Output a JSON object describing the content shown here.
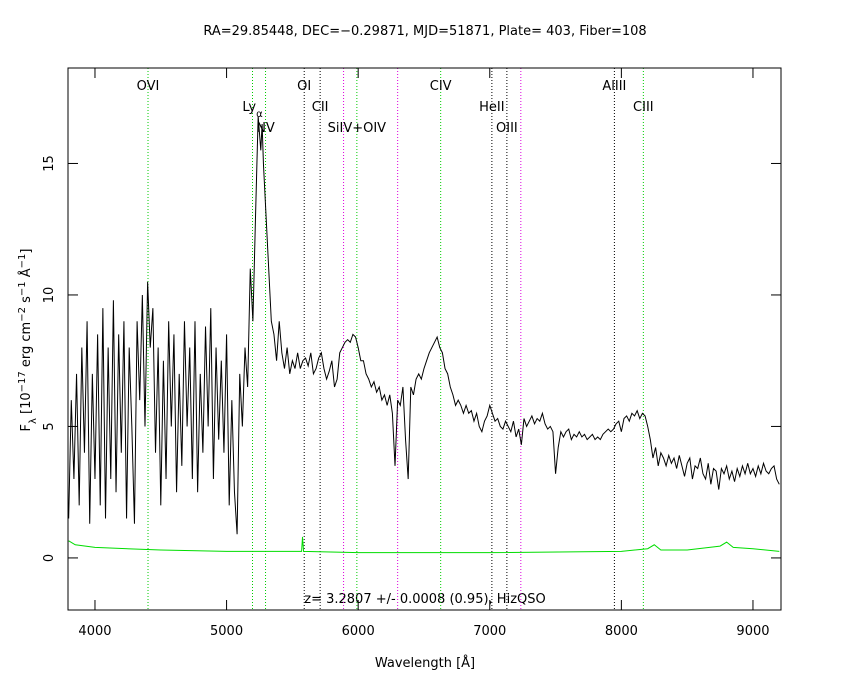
{
  "chart_data": {
    "type": "line",
    "title": "RA=29.85448, DEC=−0.29871, MJD=51871, Plate= 403, Fiber=108",
    "xlabel": "Wavelength [Å]",
    "ylabel_parts": [
      {
        "text": "F"
      },
      {
        "text": "λ",
        "shift": "sub"
      },
      {
        "text": " [10"
      },
      {
        "text": "−17",
        "shift": "super"
      },
      {
        "text": " erg cm"
      },
      {
        "text": "−2",
        "shift": "super"
      },
      {
        "text": " s"
      },
      {
        "text": "−1",
        "shift": "super"
      },
      {
        "text": " Å"
      },
      {
        "text": "−1",
        "shift": "super"
      },
      {
        "text": "]"
      }
    ],
    "annotation": "z= 3.2807 +/- 0.0008 (0.95), HizQSO",
    "xlim": [
      3795,
      9213
    ],
    "ylim": [
      -1.98,
      18.63
    ],
    "xticks": [
      4000,
      5000,
      6000,
      7000,
      8000,
      9000
    ],
    "yticks": [
      0,
      5,
      10,
      15
    ],
    "emission_lines": [
      {
        "x": 4403,
        "label": "OVI",
        "color": "#00cc00"
      },
      {
        "x": 5197,
        "label": "Ly",
        "label_sub": "α",
        "color": "#00cc00"
      },
      {
        "x": 5296,
        "label": "NV",
        "color": "#00cc00"
      },
      {
        "x": 5590,
        "label": "OI",
        "color": "#000000"
      },
      {
        "x": 5711,
        "label": "CII",
        "color": "#000000"
      },
      {
        "x": 5990,
        "label": "SiIV+OIV",
        "color": "#00cc00"
      },
      {
        "x": 6627,
        "label": "CIV",
        "color": "#00cc00"
      },
      {
        "x": 7016,
        "label": "HeII",
        "color": "#000000"
      },
      {
        "x": 7130,
        "label": "OIII",
        "color": "#000000"
      },
      {
        "x": 7947,
        "label": "AlIII",
        "color": "#000000"
      },
      {
        "x": 8167,
        "label": "CIII",
        "color": "#00cc00"
      }
    ],
    "sky_lines": {
      "color": "#dd00dd",
      "x": [
        5889,
        6300,
        7236
      ]
    },
    "series": [
      {
        "color": "#000000",
        "x": [
          3800,
          3820,
          3840,
          3860,
          3880,
          3900,
          3920,
          3940,
          3960,
          3980,
          4000,
          4020,
          4040,
          4060,
          4080,
          4100,
          4120,
          4140,
          4160,
          4180,
          4200,
          4220,
          4240,
          4260,
          4280,
          4300,
          4320,
          4340,
          4360,
          4380,
          4400,
          4420,
          4440,
          4460,
          4480,
          4500,
          4520,
          4540,
          4560,
          4580,
          4600,
          4620,
          4640,
          4660,
          4680,
          4700,
          4720,
          4740,
          4760,
          4780,
          4800,
          4820,
          4840,
          4860,
          4880,
          4900,
          4920,
          4940,
          4960,
          4980,
          5000,
          5020,
          5040,
          5060,
          5080,
          5100,
          5120,
          5140,
          5160,
          5180,
          5200,
          5220,
          5240,
          5260,
          5270,
          5280,
          5300,
          5320,
          5340,
          5360,
          5380,
          5400,
          5420,
          5440,
          5460,
          5480,
          5500,
          5520,
          5540,
          5560,
          5580,
          5600,
          5620,
          5640,
          5660,
          5680,
          5700,
          5720,
          5740,
          5760,
          5780,
          5800,
          5820,
          5840,
          5860,
          5880,
          5900,
          5920,
          5940,
          5960,
          5980,
          6000,
          6020,
          6040,
          6060,
          6080,
          6100,
          6120,
          6140,
          6160,
          6180,
          6200,
          6220,
          6240,
          6260,
          6280,
          6300,
          6320,
          6340,
          6360,
          6380,
          6400,
          6420,
          6440,
          6460,
          6480,
          6500,
          6520,
          6540,
          6560,
          6580,
          6600,
          6620,
          6640,
          6660,
          6680,
          6700,
          6720,
          6740,
          6760,
          6780,
          6800,
          6820,
          6840,
          6860,
          6880,
          6900,
          6920,
          6940,
          6960,
          6980,
          7000,
          7020,
          7040,
          7060,
          7080,
          7100,
          7120,
          7140,
          7160,
          7180,
          7200,
          7220,
          7240,
          7260,
          7280,
          7300,
          7320,
          7340,
          7360,
          7380,
          7400,
          7420,
          7440,
          7460,
          7480,
          7500,
          7520,
          7540,
          7560,
          7580,
          7600,
          7620,
          7640,
          7660,
          7680,
          7700,
          7720,
          7740,
          7760,
          7780,
          7800,
          7820,
          7840,
          7860,
          7880,
          7900,
          7920,
          7940,
          7960,
          7980,
          8000,
          8020,
          8040,
          8060,
          8080,
          8100,
          8120,
          8140,
          8160,
          8180,
          8200,
          8220,
          8240,
          8260,
          8280,
          8300,
          8320,
          8340,
          8360,
          8380,
          8400,
          8420,
          8440,
          8460,
          8480,
          8500,
          8520,
          8540,
          8560,
          8580,
          8600,
          8620,
          8640,
          8660,
          8680,
          8700,
          8720,
          8740,
          8760,
          8780,
          8800,
          8820,
          8840,
          8860,
          8880,
          8900,
          8920,
          8940,
          8960,
          8980,
          9000,
          9020,
          9040,
          9060,
          9080,
          9100,
          9120,
          9140,
          9160,
          9180,
          9200
        ],
        "values": [
          1.5,
          6,
          3,
          7,
          2,
          8,
          4,
          9,
          1.3,
          7,
          3,
          8.5,
          2,
          9.5,
          1.5,
          8,
          3,
          9.8,
          2.5,
          8.5,
          4,
          9,
          1.5,
          8,
          5,
          1.3,
          9,
          6,
          10,
          5,
          10.5,
          8,
          9.5,
          4,
          8,
          2,
          7.5,
          3,
          9,
          5,
          8.5,
          2.5,
          7,
          3.5,
          9,
          5,
          8,
          3,
          9,
          2.5,
          7,
          4,
          8.8,
          5,
          9.5,
          3,
          8,
          4.5,
          7.5,
          4,
          8.5,
          2,
          6,
          2.5,
          0.9,
          7,
          5,
          8,
          6.5,
          11,
          9,
          13,
          16.8,
          15.5,
          16.5,
          15,
          13,
          11,
          9,
          8.5,
          7.5,
          9,
          7.8,
          7.2,
          8,
          7,
          7.5,
          7.2,
          7.8,
          7.2,
          7.5,
          7.6,
          7.3,
          7.8,
          7,
          7.2,
          7.6,
          7.8,
          7.2,
          6.8,
          7.1,
          7.5,
          6.5,
          6.8,
          7.8,
          8,
          8.2,
          8.3,
          8.2,
          8.5,
          8.4,
          8,
          7.5,
          7.5,
          7,
          6.8,
          6.5,
          6.7,
          6.3,
          6.5,
          6,
          6.2,
          5.8,
          6.2,
          5.5,
          3.5,
          6,
          5.8,
          6.5,
          4.5,
          3,
          6.5,
          6.2,
          6.8,
          7,
          6.8,
          7.2,
          7.5,
          7.8,
          8,
          8.2,
          8.4,
          8,
          7.8,
          7.2,
          7,
          6.5,
          6.2,
          5.8,
          6,
          5.8,
          5.5,
          5.8,
          5.5,
          5.6,
          5.2,
          5.5,
          5,
          4.8,
          5.2,
          5.4,
          5.8,
          5.5,
          5.2,
          5.3,
          5,
          4.9,
          5.2,
          5,
          4.8,
          5.2,
          4.6,
          4.9,
          4.3,
          5.3,
          5,
          5.2,
          5.4,
          5.1,
          5.3,
          5.2,
          5.5,
          5.1,
          4.9,
          5,
          4.8,
          3.2,
          4.2,
          4.8,
          4.6,
          4.8,
          4.9,
          4.5,
          4.7,
          4.6,
          4.8,
          4.6,
          4.7,
          4.5,
          4.6,
          4.7,
          4.5,
          4.6,
          4.5,
          4.7,
          4.8,
          4.9,
          4.8,
          4.9,
          5.1,
          5.2,
          4.8,
          5.3,
          5.4,
          5.2,
          5.5,
          5.4,
          5.6,
          5.3,
          5.5,
          5.4,
          5,
          4.5,
          3.8,
          4.2,
          3.5,
          4,
          3.8,
          3.5,
          3.9,
          3.6,
          3.8,
          3.4,
          3.9,
          3.5,
          3.1,
          3.6,
          3.8,
          3,
          3.5,
          3.4,
          3.8,
          3.2,
          3,
          3.6,
          2.8,
          3.4,
          3.3,
          2.6,
          3.4,
          3.2,
          3.5,
          3,
          3.3,
          2.9,
          3.4,
          3.1,
          3.5,
          3.2,
          3.6,
          3.2,
          3.4,
          3.1,
          3.5,
          3.2,
          3.6,
          3.3,
          3.2,
          3.4,
          3.5,
          3,
          2.8
        ]
      },
      {
        "color": "#00dd00",
        "x": [
          3800,
          3850,
          4000,
          4500,
          5000,
          5570,
          5577,
          5585,
          6000,
          7000,
          8000,
          8200,
          8250,
          8300,
          8500,
          8750,
          8800,
          8850,
          9000,
          9200
        ],
        "values": [
          0.65,
          0.5,
          0.4,
          0.3,
          0.25,
          0.25,
          0.8,
          0.25,
          0.2,
          0.2,
          0.25,
          0.35,
          0.5,
          0.3,
          0.3,
          0.45,
          0.6,
          0.4,
          0.35,
          0.25
        ]
      }
    ]
  }
}
